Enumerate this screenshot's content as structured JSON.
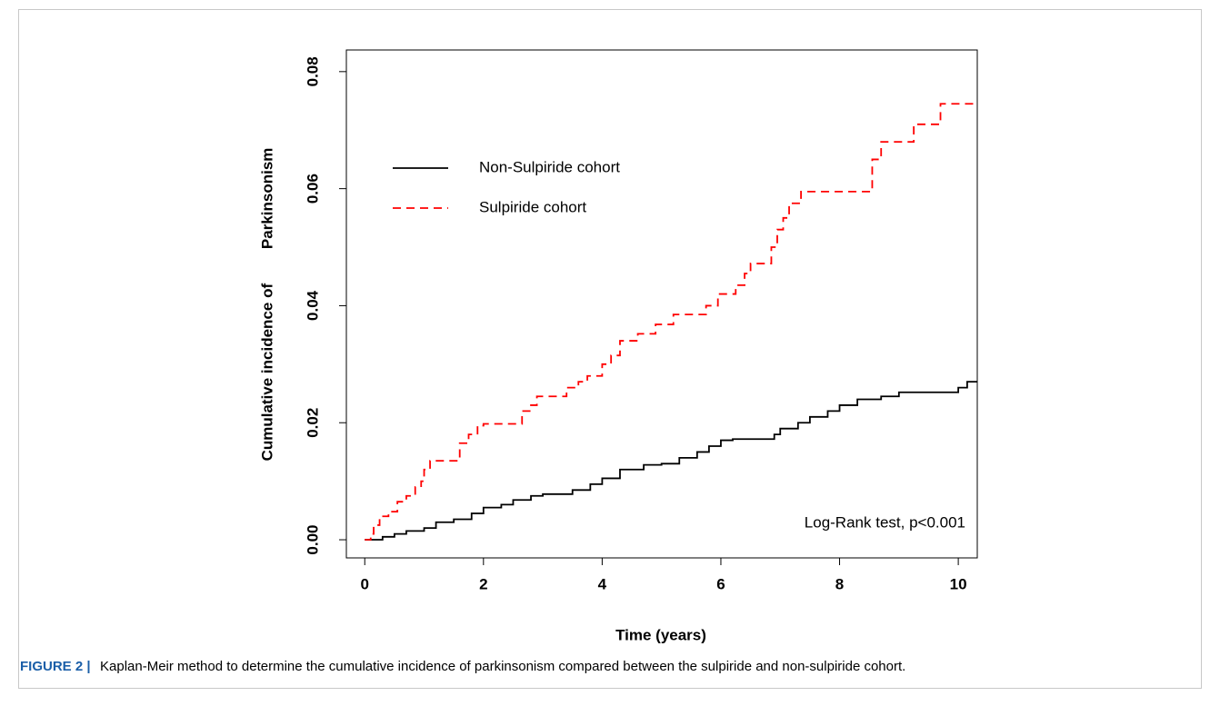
{
  "chart_data": {
    "type": "step",
    "ylabel": "Cumulative incidence of        Parkinsonism",
    "xlabel": "Time (years)",
    "annotation": "Log-Rank test, p<0.001",
    "figure_label": "FIGURE 2 |",
    "caption": "Kaplan-Meir method to determine the cumulative incidence of parkinsonism compared between the sulpiride and non-sulpiride cohort.",
    "xlim": [
      -0.31,
      10.32
    ],
    "ylim": [
      -0.0031,
      0.0837
    ],
    "xticks": [
      0,
      2,
      4,
      6,
      8,
      10
    ],
    "yticks": [
      {
        "value": 0,
        "label": "0.00"
      },
      {
        "value": 0.02,
        "label": "0.02"
      },
      {
        "value": 0.04,
        "label": "0.04"
      },
      {
        "value": 0.06,
        "label": "0.06"
      },
      {
        "value": 0.08,
        "label": "0.08"
      }
    ],
    "legend": "upper left",
    "series": [
      {
        "name": "Non-Sulpiride cohort",
        "color": "#000000",
        "dash": "solid",
        "x": [
          0,
          0.3,
          0.5,
          0.7,
          1.0,
          1.2,
          1.5,
          1.8,
          2.0,
          2.3,
          2.5,
          2.8,
          3.0,
          3.5,
          3.8,
          4.0,
          4.3,
          4.7,
          5.0,
          5.3,
          5.6,
          5.8,
          6.0,
          6.2,
          6.9,
          7.0,
          7.3,
          7.5,
          7.8,
          8.0,
          8.3,
          8.7,
          9.0,
          10.0,
          10.15
        ],
        "values": [
          0,
          0.0005,
          0.001,
          0.0015,
          0.002,
          0.003,
          0.0035,
          0.0045,
          0.0055,
          0.006,
          0.0068,
          0.0075,
          0.0078,
          0.0085,
          0.0095,
          0.0105,
          0.012,
          0.0128,
          0.013,
          0.014,
          0.015,
          0.016,
          0.017,
          0.0172,
          0.018,
          0.019,
          0.02,
          0.021,
          0.022,
          0.023,
          0.024,
          0.0245,
          0.0252,
          0.026,
          0.027
        ]
      },
      {
        "name": "Sulpiride cohort",
        "color": "#ff0000",
        "dash": "dashed",
        "x": [
          0,
          0.1,
          0.15,
          0.25,
          0.4,
          0.55,
          0.7,
          0.85,
          0.95,
          1.0,
          1.1,
          1.6,
          1.75,
          1.9,
          2.0,
          2.65,
          2.8,
          2.9,
          3.4,
          3.6,
          3.75,
          4.0,
          4.15,
          4.3,
          4.6,
          4.9,
          5.2,
          5.75,
          5.95,
          6.25,
          6.4,
          6.5,
          6.85,
          6.95,
          7.05,
          7.15,
          7.35,
          8.55,
          8.7,
          9.25,
          9.7
        ],
        "values": [
          0,
          0.001,
          0.0025,
          0.004,
          0.0048,
          0.0065,
          0.0075,
          0.009,
          0.01,
          0.012,
          0.0135,
          0.0165,
          0.018,
          0.0195,
          0.0198,
          0.022,
          0.023,
          0.0245,
          0.026,
          0.027,
          0.028,
          0.03,
          0.0315,
          0.034,
          0.0352,
          0.0368,
          0.0385,
          0.04,
          0.042,
          0.0435,
          0.0455,
          0.0472,
          0.05,
          0.053,
          0.055,
          0.0575,
          0.0595,
          0.065,
          0.068,
          0.071,
          0.0745
        ]
      }
    ]
  }
}
